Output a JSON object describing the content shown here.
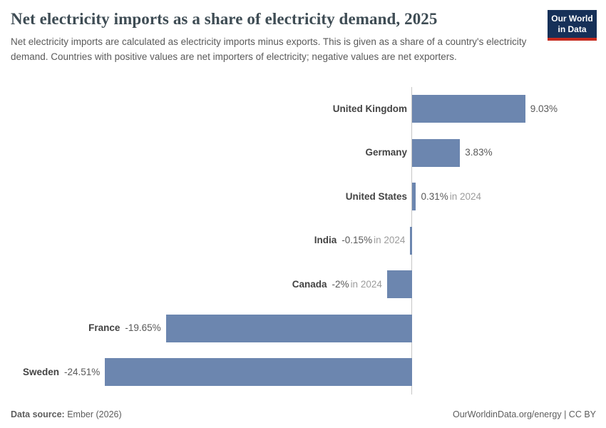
{
  "header": {
    "title": "Net electricity imports as a share of electricity demand, 2025",
    "subtitle": "Net electricity imports are calculated as electricity imports minus exports. This is given as a share of a country's electricity demand. Countries with positive values are net importers of electricity; negative values are net exporters.",
    "logo": {
      "line1": "Our World",
      "line2": "in Data"
    }
  },
  "chart_data": {
    "type": "bar",
    "orientation": "horizontal",
    "title": "Net electricity imports as a share of electricity demand, 2025",
    "categories": [
      "United Kingdom",
      "Germany",
      "United States",
      "India",
      "Canada",
      "France",
      "Sweden"
    ],
    "values": [
      9.03,
      3.83,
      0.31,
      -0.15,
      -2,
      -19.65,
      -24.51
    ],
    "value_labels": [
      "9.03%",
      "3.83%",
      "0.31%",
      "-0.15%",
      "-2%",
      "-19.65%",
      "-24.51%"
    ],
    "value_suffixes": [
      "",
      "",
      "in 2024",
      "in 2024",
      "in 2024",
      "",
      ""
    ],
    "xlabel": "",
    "ylabel": "",
    "xlim": [
      -24.51,
      9.03
    ],
    "grid": false,
    "legend": "none",
    "bar_color": "#6c86af"
  },
  "colors": {
    "bar": "#6c86af",
    "axis": "#c6c6c6",
    "logo_navy": "#163058",
    "logo_red": "#c5291d"
  },
  "footer": {
    "source_label": "Data source:",
    "source_value": " Ember (2026)",
    "link": "OurWorldinData.org/energy",
    "sep": " | ",
    "license": "CC BY"
  }
}
